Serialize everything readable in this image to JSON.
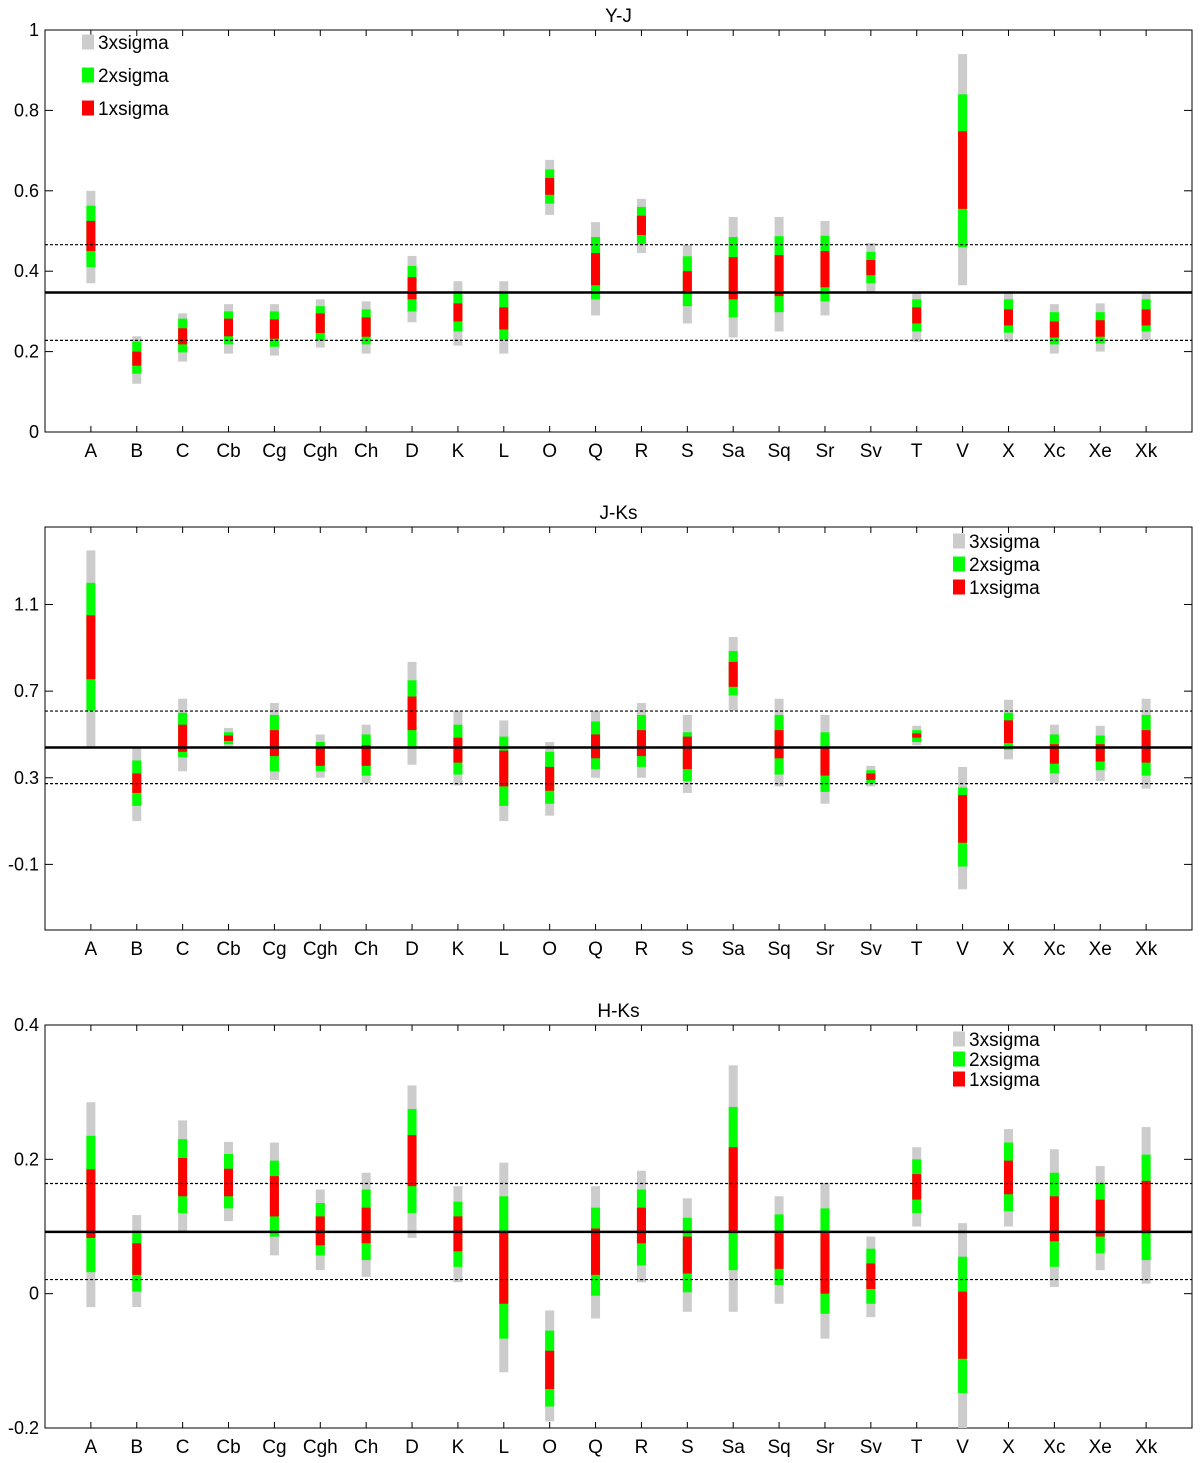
{
  "chart_data": [
    {
      "type": "range-bar",
      "title": "Y-J",
      "categories": [
        "A",
        "B",
        "C",
        "Cb",
        "Cg",
        "Cgh",
        "Ch",
        "D",
        "K",
        "L",
        "O",
        "Q",
        "R",
        "S",
        "Sa",
        "Sq",
        "Sr",
        "Sv",
        "T",
        "V",
        "X",
        "Xc",
        "Xe",
        "Xk"
      ],
      "ylim": [
        0,
        1
      ],
      "yticks": [
        0,
        0.2,
        0.4,
        0.6,
        0.8,
        1
      ],
      "ytick_labels": [
        "0",
        "0.2",
        "0.4",
        "0.6",
        "0.8",
        "1"
      ],
      "mean": 0.347,
      "sigma_lines": [
        0.228,
        0.466
      ],
      "legend": {
        "position": "top-left",
        "entries": [
          "3xsigma",
          "2xsigma",
          "1xsigma"
        ]
      },
      "colors": {
        "s3": "#cccccc",
        "s2": "#00ff00",
        "s1": "#ff0000"
      },
      "sigma3": [
        [
          0.37,
          0.6
        ],
        [
          0.12,
          0.238
        ],
        [
          0.175,
          0.295
        ],
        [
          0.195,
          0.318
        ],
        [
          0.19,
          0.318
        ],
        [
          0.21,
          0.33
        ],
        [
          0.195,
          0.325
        ],
        [
          0.273,
          0.438
        ],
        [
          0.215,
          0.375
        ],
        [
          0.195,
          0.375
        ],
        [
          0.54,
          0.677
        ],
        [
          0.29,
          0.522
        ],
        [
          0.445,
          0.58
        ],
        [
          0.27,
          0.465
        ],
        [
          0.235,
          0.535
        ],
        [
          0.25,
          0.535
        ],
        [
          0.29,
          0.525
        ],
        [
          0.345,
          0.47
        ],
        [
          0.225,
          0.348
        ],
        [
          0.365,
          0.94
        ],
        [
          0.225,
          0.35
        ],
        [
          0.195,
          0.318
        ],
        [
          0.2,
          0.32
        ],
        [
          0.228,
          0.348
        ]
      ],
      "sigma2": [
        [
          0.41,
          0.563
        ],
        [
          0.145,
          0.225
        ],
        [
          0.198,
          0.282
        ],
        [
          0.218,
          0.3
        ],
        [
          0.212,
          0.3
        ],
        [
          0.228,
          0.313
        ],
        [
          0.218,
          0.305
        ],
        [
          0.3,
          0.413
        ],
        [
          0.25,
          0.345
        ],
        [
          0.23,
          0.345
        ],
        [
          0.568,
          0.653
        ],
        [
          0.33,
          0.485
        ],
        [
          0.468,
          0.56
        ],
        [
          0.313,
          0.437
        ],
        [
          0.285,
          0.485
        ],
        [
          0.298,
          0.487
        ],
        [
          0.325,
          0.488
        ],
        [
          0.37,
          0.448
        ],
        [
          0.25,
          0.33
        ],
        [
          0.46,
          0.84
        ],
        [
          0.247,
          0.33
        ],
        [
          0.218,
          0.298
        ],
        [
          0.22,
          0.298
        ],
        [
          0.25,
          0.33
        ]
      ],
      "sigma1": [
        [
          0.45,
          0.525
        ],
        [
          0.165,
          0.2
        ],
        [
          0.218,
          0.258
        ],
        [
          0.238,
          0.282
        ],
        [
          0.232,
          0.28
        ],
        [
          0.246,
          0.295
        ],
        [
          0.237,
          0.285
        ],
        [
          0.33,
          0.385
        ],
        [
          0.275,
          0.32
        ],
        [
          0.255,
          0.31
        ],
        [
          0.59,
          0.632
        ],
        [
          0.365,
          0.445
        ],
        [
          0.49,
          0.538
        ],
        [
          0.345,
          0.4
        ],
        [
          0.33,
          0.435
        ],
        [
          0.338,
          0.44
        ],
        [
          0.36,
          0.45
        ],
        [
          0.39,
          0.428
        ],
        [
          0.27,
          0.31
        ],
        [
          0.555,
          0.748
        ],
        [
          0.265,
          0.305
        ],
        [
          0.235,
          0.275
        ],
        [
          0.237,
          0.278
        ],
        [
          0.265,
          0.305
        ]
      ]
    },
    {
      "type": "range-bar",
      "title": "J-Ks",
      "categories": [
        "A",
        "B",
        "C",
        "Cb",
        "Cg",
        "Cgh",
        "Ch",
        "D",
        "K",
        "L",
        "O",
        "Q",
        "R",
        "S",
        "Sa",
        "Sq",
        "Sr",
        "Sv",
        "T",
        "V",
        "X",
        "Xc",
        "Xe",
        "Xk"
      ],
      "ylim": [
        -0.403,
        1.458
      ],
      "yticks": [
        -0.1,
        0.3,
        0.7,
        1.1
      ],
      "ytick_labels": [
        "-0.1",
        "0.3",
        "0.7",
        "1.1"
      ],
      "mean": 0.44,
      "sigma_lines": [
        0.273,
        0.608
      ],
      "legend": {
        "position": "top-right",
        "entries": [
          "3xsigma",
          "2xsigma",
          "1xsigma"
        ]
      },
      "colors": {
        "s3": "#cccccc",
        "s2": "#00ff00",
        "s1": "#ff0000"
      },
      "sigma3": [
        [
          0.44,
          1.35
        ],
        [
          0.1,
          0.44
        ],
        [
          0.33,
          0.665
        ],
        [
          0.44,
          0.53
        ],
        [
          0.29,
          0.645
        ],
        [
          0.3,
          0.5
        ],
        [
          0.275,
          0.545
        ],
        [
          0.36,
          0.835
        ],
        [
          0.265,
          0.61
        ],
        [
          0.1,
          0.565
        ],
        [
          0.125,
          0.465
        ],
        [
          0.3,
          0.61
        ],
        [
          0.3,
          0.645
        ],
        [
          0.23,
          0.59
        ],
        [
          0.61,
          0.95
        ],
        [
          0.26,
          0.665
        ],
        [
          0.18,
          0.59
        ],
        [
          0.26,
          0.355
        ],
        [
          0.45,
          0.54
        ],
        [
          -0.215,
          0.35
        ],
        [
          0.385,
          0.66
        ],
        [
          0.275,
          0.545
        ],
        [
          0.285,
          0.54
        ],
        [
          0.25,
          0.665
        ]
      ],
      "sigma2": [
        [
          0.61,
          1.2
        ],
        [
          0.17,
          0.38
        ],
        [
          0.395,
          0.6
        ],
        [
          0.455,
          0.51
        ],
        [
          0.33,
          0.59
        ],
        [
          0.33,
          0.465
        ],
        [
          0.31,
          0.5
        ],
        [
          0.44,
          0.75
        ],
        [
          0.315,
          0.545
        ],
        [
          0.17,
          0.49
        ],
        [
          0.18,
          0.42
        ],
        [
          0.34,
          0.56
        ],
        [
          0.35,
          0.59
        ],
        [
          0.285,
          0.51
        ],
        [
          0.68,
          0.885
        ],
        [
          0.315,
          0.59
        ],
        [
          0.235,
          0.51
        ],
        [
          0.275,
          0.335
        ],
        [
          0.465,
          0.52
        ],
        [
          -0.11,
          0.255
        ],
        [
          0.43,
          0.6
        ],
        [
          0.32,
          0.5
        ],
        [
          0.335,
          0.495
        ],
        [
          0.31,
          0.59
        ]
      ],
      "sigma1": [
        [
          0.755,
          1.05
        ],
        [
          0.23,
          0.32
        ],
        [
          0.42,
          0.545
        ],
        [
          0.47,
          0.495
        ],
        [
          0.4,
          0.52
        ],
        [
          0.355,
          0.44
        ],
        [
          0.355,
          0.45
        ],
        [
          0.52,
          0.675
        ],
        [
          0.37,
          0.485
        ],
        [
          0.26,
          0.425
        ],
        [
          0.24,
          0.35
        ],
        [
          0.39,
          0.5
        ],
        [
          0.4,
          0.52
        ],
        [
          0.34,
          0.49
        ],
        [
          0.72,
          0.835
        ],
        [
          0.39,
          0.52
        ],
        [
          0.31,
          0.44
        ],
        [
          0.29,
          0.32
        ],
        [
          0.485,
          0.505
        ],
        [
          0.0,
          0.22
        ],
        [
          0.46,
          0.565
        ],
        [
          0.365,
          0.455
        ],
        [
          0.375,
          0.455
        ],
        [
          0.37,
          0.52
        ]
      ]
    },
    {
      "type": "range-bar",
      "title": "H-Ks",
      "categories": [
        "A",
        "B",
        "C",
        "Cb",
        "Cg",
        "Cgh",
        "Ch",
        "D",
        "K",
        "L",
        "O",
        "Q",
        "R",
        "S",
        "Sa",
        "Sq",
        "Sr",
        "Sv",
        "T",
        "V",
        "X",
        "Xc",
        "Xe",
        "Xk"
      ],
      "ylim": [
        -0.2,
        0.4
      ],
      "yticks": [
        -0.2,
        0,
        0.2,
        0.4
      ],
      "ytick_labels": [
        "-0.2",
        "0",
        "0.2",
        "0.4"
      ],
      "mean": 0.092,
      "sigma_lines": [
        0.021,
        0.164
      ],
      "legend": {
        "position": "top-right",
        "entries": [
          "3xsigma",
          "2xsigma",
          "1xsigma"
        ]
      },
      "colors": {
        "s3": "#cccccc",
        "s2": "#00ff00",
        "s1": "#ff0000"
      },
      "sigma3": [
        [
          -0.02,
          0.285
        ],
        [
          -0.02,
          0.117
        ],
        [
          0.092,
          0.258
        ],
        [
          0.108,
          0.226
        ],
        [
          0.057,
          0.225
        ],
        [
          0.035,
          0.155
        ],
        [
          0.025,
          0.18
        ],
        [
          0.083,
          0.31
        ],
        [
          0.017,
          0.16
        ],
        [
          -0.117,
          0.195
        ],
        [
          -0.19,
          -0.025
        ],
        [
          -0.037,
          0.16
        ],
        [
          0.017,
          0.183
        ],
        [
          -0.027,
          0.142
        ],
        [
          -0.027,
          0.34
        ],
        [
          -0.015,
          0.145
        ],
        [
          -0.067,
          0.165
        ],
        [
          -0.035,
          0.085
        ],
        [
          0.1,
          0.218
        ],
        [
          -0.2,
          0.105
        ],
        [
          0.1,
          0.245
        ],
        [
          0.01,
          0.215
        ],
        [
          0.035,
          0.19
        ],
        [
          0.015,
          0.248
        ]
      ],
      "sigma2": [
        [
          0.032,
          0.235
        ],
        [
          0.003,
          0.09
        ],
        [
          0.12,
          0.23
        ],
        [
          0.127,
          0.208
        ],
        [
          0.085,
          0.198
        ],
        [
          0.057,
          0.135
        ],
        [
          0.05,
          0.155
        ],
        [
          0.12,
          0.275
        ],
        [
          0.04,
          0.137
        ],
        [
          -0.067,
          0.145
        ],
        [
          -0.168,
          -0.055
        ],
        [
          -0.003,
          0.128
        ],
        [
          0.042,
          0.155
        ],
        [
          0.002,
          0.113
        ],
        [
          0.035,
          0.278
        ],
        [
          0.013,
          0.118
        ],
        [
          -0.03,
          0.127
        ],
        [
          -0.015,
          0.067
        ],
        [
          0.12,
          0.2
        ],
        [
          -0.148,
          0.055
        ],
        [
          0.123,
          0.225
        ],
        [
          0.04,
          0.18
        ],
        [
          0.06,
          0.165
        ],
        [
          0.05,
          0.207
        ]
      ],
      "sigma1": [
        [
          0.083,
          0.185
        ],
        [
          0.028,
          0.075
        ],
        [
          0.145,
          0.202
        ],
        [
          0.145,
          0.186
        ],
        [
          0.115,
          0.175
        ],
        [
          0.072,
          0.115
        ],
        [
          0.075,
          0.128
        ],
        [
          0.16,
          0.236
        ],
        [
          0.063,
          0.115
        ],
        [
          -0.015,
          0.093
        ],
        [
          -0.142,
          -0.085
        ],
        [
          0.028,
          0.097
        ],
        [
          0.075,
          0.128
        ],
        [
          0.03,
          0.085
        ],
        [
          0.093,
          0.218
        ],
        [
          0.037,
          0.09
        ],
        [
          0.0,
          0.09
        ],
        [
          0.007,
          0.045
        ],
        [
          0.14,
          0.178
        ],
        [
          -0.097,
          0.003
        ],
        [
          0.148,
          0.198
        ],
        [
          0.078,
          0.145
        ],
        [
          0.085,
          0.14
        ],
        [
          0.09,
          0.168
        ]
      ]
    }
  ]
}
